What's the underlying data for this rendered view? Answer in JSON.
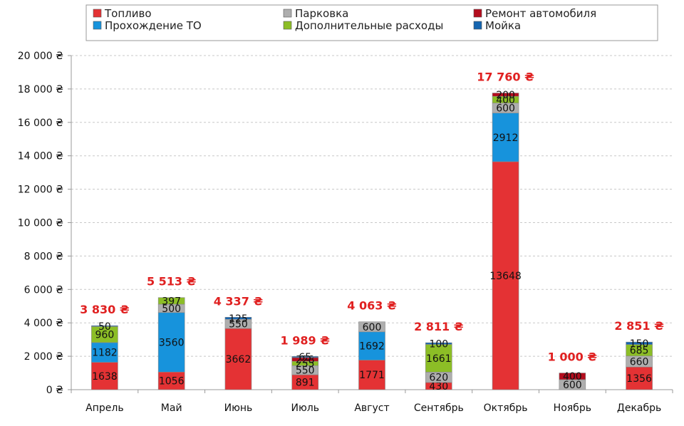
{
  "chart_data": {
    "type": "bar",
    "stacked": true,
    "categories": [
      "Апрель",
      "Май",
      "Июнь",
      "Июль",
      "Август",
      "Сентябрь",
      "Октябрь",
      "Ноябрь",
      "Декабрь"
    ],
    "series": [
      {
        "name": "Топливо",
        "color": "#e43234",
        "values": [
          1638,
          1056,
          3662,
          891,
          1771,
          430,
          13648,
          0,
          1356
        ]
      },
      {
        "name": "Прохождение ТО",
        "color": "#1793dc",
        "values": [
          1182,
          3560,
          0,
          0,
          1692,
          0,
          2912,
          0,
          0
        ]
      },
      {
        "name": "Парковка",
        "color": "#aeaeae",
        "values": [
          0,
          500,
          550,
          550,
          600,
          620,
          600,
          600,
          660
        ]
      },
      {
        "name": "Дополнительные расходы",
        "color": "#8cbe26",
        "values": [
          960,
          397,
          0,
          255,
          0,
          1661,
          400,
          0,
          685
        ]
      },
      {
        "name": "Ремонт автомобиля",
        "color": "#b40d1e",
        "values": [
          0,
          0,
          0,
          228,
          0,
          0,
          200,
          400,
          0
        ]
      },
      {
        "name": "Мойка",
        "color": "#1565b0",
        "values": [
          50,
          0,
          125,
          65,
          0,
          100,
          0,
          0,
          150
        ]
      }
    ],
    "totals": [
      "3 830 ₴",
      "5 513 ₴",
      "4 337 ₴",
      "1 989 ₴",
      "4 063 ₴",
      "2 811 ₴",
      "17 760 ₴",
      "1 000 ₴",
      "2 851 ₴"
    ],
    "ylim": [
      0,
      20000
    ],
    "yticks": [
      0,
      2000,
      4000,
      6000,
      8000,
      10000,
      12000,
      14000,
      16000,
      18000,
      20000
    ],
    "ytick_labels": [
      "0 ₴",
      "2 000 ₴",
      "4 000 ₴",
      "6 000 ₴",
      "8 000 ₴",
      "10 000 ₴",
      "12 000 ₴",
      "14 000 ₴",
      "16 000 ₴",
      "18 000 ₴",
      "20 000 ₴"
    ],
    "grid": true,
    "legend_position": "top",
    "title": "",
    "xlabel": "",
    "ylabel": ""
  }
}
